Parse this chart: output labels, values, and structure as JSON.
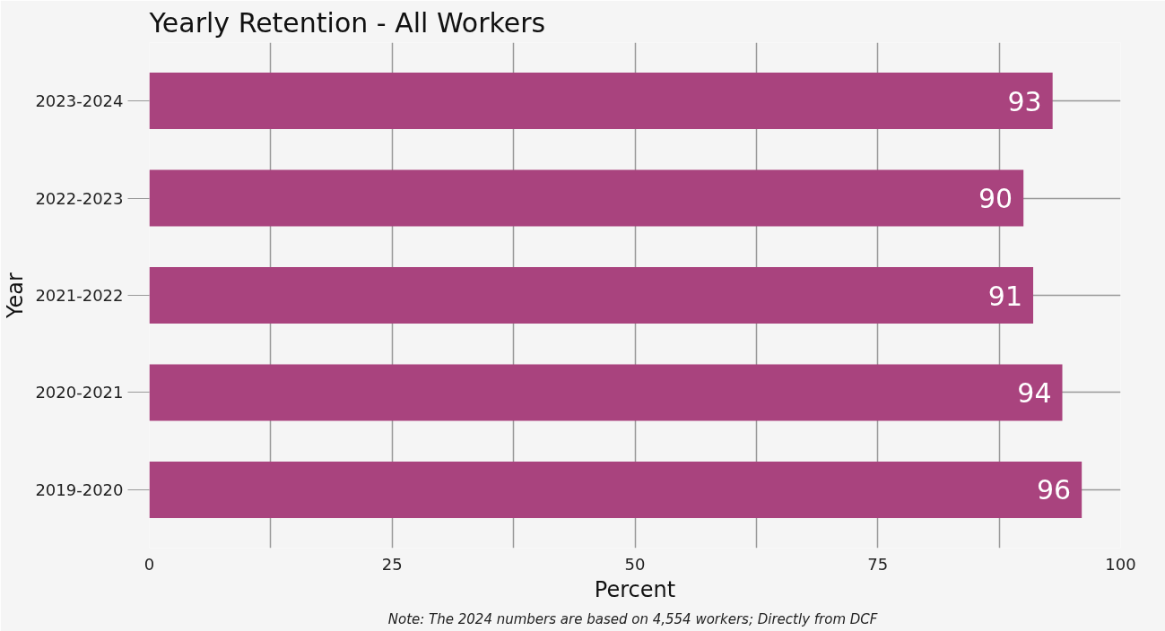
{
  "chart_data": {
    "type": "bar",
    "orientation": "horizontal",
    "title": "Yearly Retention - All Workers",
    "categories": [
      "2023-2024",
      "2022-2023",
      "2021-2022",
      "2020-2021",
      "2019-2020"
    ],
    "values": [
      93,
      90,
      91,
      94,
      96
    ],
    "color": "#a9437e",
    "xlabel": "Percent",
    "ylabel": "Year",
    "xlim": [
      0,
      100
    ],
    "xticks": [
      0,
      {
        "value": 12.5,
        "label": null
      },
      25,
      {
        "value": 37.5,
        "label": null
      },
      50,
      {
        "value": 62.5,
        "label": null
      },
      75,
      {
        "value": 87.5,
        "label": null
      },
      100
    ],
    "grid": true,
    "data_labels": true,
    "annotations": [
      "Note:  The 2024 numbers are based on 4,554 workers; Directly from DCF"
    ]
  }
}
